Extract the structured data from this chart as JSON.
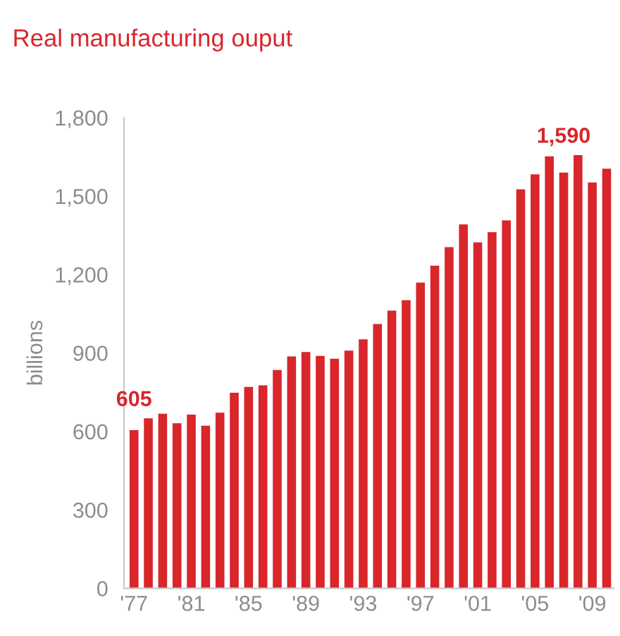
{
  "chart_data": {
    "type": "bar",
    "title": "Real manufacturing ouput",
    "ylabel": "billions",
    "categories": [
      "'77",
      null,
      null,
      null,
      "'81",
      null,
      null,
      null,
      "'85",
      null,
      null,
      null,
      "'89",
      null,
      null,
      null,
      "'93",
      null,
      null,
      null,
      "'97",
      null,
      null,
      null,
      "'01",
      null,
      null,
      null,
      "'05",
      null,
      null,
      null,
      "'09",
      null
    ],
    "values": [
      605,
      650,
      668,
      631,
      664,
      622,
      672,
      748,
      770,
      776,
      835,
      887,
      904,
      889,
      878,
      909,
      952,
      1011,
      1062,
      1102,
      1169,
      1234,
      1305,
      1392,
      1323,
      1362,
      1407,
      1526,
      1583,
      1652,
      1590,
      1657,
      1552,
      1605
    ],
    "value_labels": [
      "605",
      null,
      null,
      null,
      null,
      null,
      null,
      null,
      null,
      null,
      null,
      null,
      null,
      null,
      null,
      null,
      null,
      null,
      null,
      null,
      null,
      null,
      null,
      null,
      null,
      null,
      null,
      null,
      null,
      null,
      "1,590",
      null,
      null,
      null
    ],
    "color": "#d8262b",
    "ylim": [
      0,
      1800
    ],
    "yticks": [
      0,
      300,
      600,
      900,
      {
        "value": 1200,
        "label": "1,200"
      },
      {
        "value": 1500,
        "label": "1,500"
      },
      {
        "value": 1800,
        "label": "1,800"
      }
    ],
    "grid": false,
    "legend": false
  }
}
